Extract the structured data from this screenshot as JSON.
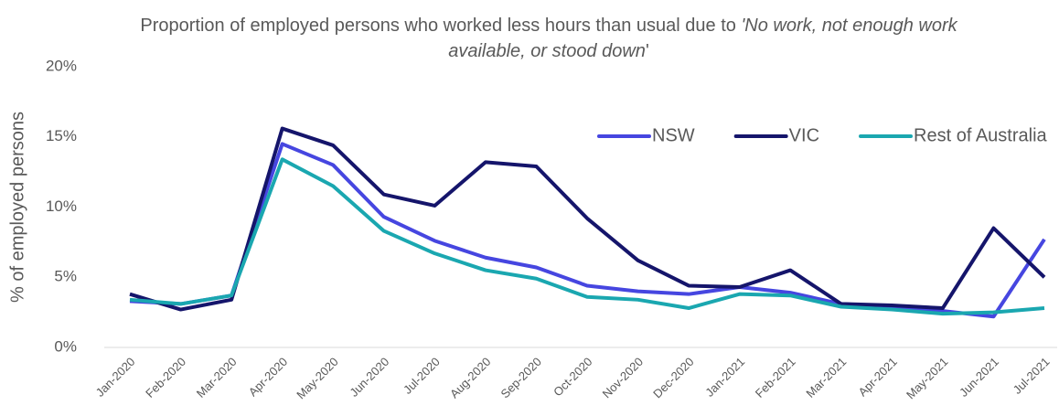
{
  "chart_data": {
    "type": "line",
    "title": [
      {
        "text": "Proportion of employed persons who worked less hours than usual due to ",
        "italic": false
      },
      {
        "text": "'No work, not enough work available, or stood down",
        "italic": true
      },
      {
        "text": "'",
        "italic": false
      }
    ],
    "y_label": "% of employed persons",
    "categories": [
      "Jan-2020",
      "Feb-2020",
      "Mar-2020",
      "Apr-2020",
      "May-2020",
      "Jun-2020",
      "Jul-2020",
      "Aug-2020",
      "Sep-2020",
      "Oct-2020",
      "Nov-2020",
      "Dec-2020",
      "Jan-2021",
      "Feb-2021",
      "Mar-2021",
      "Apr-2021",
      "May-2021",
      "Jun-2021",
      "Jul-2021"
    ],
    "series": [
      {
        "name": "NSW",
        "color": "#4646e0",
        "values": [
          3.3,
          3.1,
          3.7,
          14.5,
          13.0,
          9.3,
          7.6,
          6.4,
          5.7,
          4.4,
          4.0,
          3.8,
          4.3,
          3.9,
          3.1,
          2.9,
          2.6,
          2.2,
          7.7
        ]
      },
      {
        "name": "VIC",
        "color": "#15156b",
        "values": [
          3.8,
          2.7,
          3.4,
          15.6,
          14.4,
          10.9,
          10.1,
          13.2,
          12.9,
          9.2,
          6.2,
          4.4,
          4.3,
          5.5,
          3.1,
          3.0,
          2.8,
          8.5,
          5.0
        ]
      },
      {
        "name": "Rest of Australia",
        "color": "#1aa7b0",
        "values": [
          3.4,
          3.1,
          3.7,
          13.4,
          11.5,
          8.3,
          6.7,
          5.5,
          4.9,
          3.6,
          3.4,
          2.8,
          3.8,
          3.7,
          2.9,
          2.7,
          2.4,
          2.5,
          2.8
        ]
      }
    ],
    "ylim": [
      0,
      20
    ],
    "yticks": [
      {
        "value": 0,
        "label": "0%"
      },
      {
        "value": 5,
        "label": "5%"
      },
      {
        "value": 10,
        "label": "10%"
      },
      {
        "value": 15,
        "label": "15%"
      },
      {
        "value": 20,
        "label": "20%"
      }
    ],
    "grid": false,
    "legend": "upper right"
  }
}
